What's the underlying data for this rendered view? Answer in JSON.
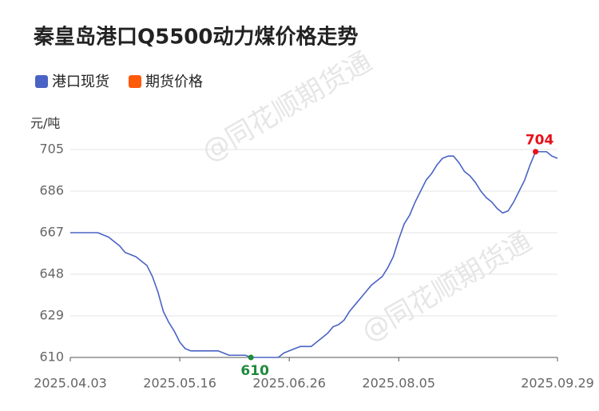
{
  "chart_data": {
    "type": "line",
    "title": "秦皇岛港口Q5500动力煤价格走势",
    "y_label": "元/吨",
    "watermark": "@同花顺期货通",
    "x": [
      "2025.04.03",
      null,
      null,
      null,
      null,
      null,
      null,
      null,
      null,
      null,
      null,
      null,
      null,
      null,
      null,
      null,
      null,
      null,
      null,
      null,
      "2025.05.16",
      null,
      null,
      null,
      null,
      null,
      null,
      null,
      null,
      null,
      null,
      null,
      null,
      null,
      null,
      null,
      null,
      null,
      null,
      null,
      "2025.06.26",
      null,
      null,
      null,
      null,
      null,
      null,
      null,
      null,
      null,
      null,
      null,
      null,
      null,
      null,
      null,
      null,
      null,
      null,
      null,
      "2025.08.05",
      null,
      null,
      null,
      null,
      null,
      null,
      null,
      null,
      null,
      null,
      null,
      null,
      null,
      null,
      null,
      null,
      null,
      null,
      null,
      null,
      null,
      null,
      null,
      null,
      null,
      null,
      null,
      null,
      "2025.09.29"
    ],
    "series": [
      {
        "name": "港口现货",
        "color": "#4a63c4",
        "values": [
          667,
          667,
          667,
          667,
          667,
          667,
          666,
          665,
          663,
          661,
          658,
          657,
          656,
          654,
          652,
          647,
          640,
          631,
          626,
          622,
          617,
          614,
          613,
          613,
          613,
          613,
          613,
          613,
          612,
          611,
          611,
          611,
          611,
          610,
          610,
          610,
          610,
          610,
          610,
          612,
          613,
          614,
          615,
          615,
          615,
          617,
          619,
          621,
          624,
          625,
          627,
          631,
          634,
          637,
          640,
          643,
          645,
          647,
          651,
          656,
          664,
          671,
          675,
          681,
          686,
          691,
          694,
          698,
          701,
          702,
          702,
          699,
          695,
          693,
          690,
          686,
          683,
          681,
          678,
          676,
          677,
          681,
          686,
          691,
          698,
          704,
          704,
          704,
          702,
          701
        ]
      },
      {
        "name": "期货价格",
        "color": "#ff5a0a",
        "values": [
          null,
          null,
          null,
          null,
          null,
          null,
          null,
          null,
          null,
          null,
          null,
          null,
          null,
          null,
          null,
          null,
          null,
          null,
          null,
          null,
          null,
          null,
          null,
          null,
          null,
          null,
          null,
          null,
          null,
          null,
          null,
          null,
          null,
          null,
          null,
          null,
          null,
          null,
          null,
          null,
          null,
          null,
          null,
          null,
          null,
          null,
          null,
          null,
          null,
          null,
          null,
          null,
          null,
          null,
          null,
          null,
          null,
          null,
          null,
          null,
          null,
          null,
          null,
          null,
          null,
          null,
          null,
          null,
          null,
          null,
          null,
          null,
          null,
          null,
          null,
          null,
          null,
          null,
          null,
          null,
          null,
          null,
          null,
          null,
          null,
          null,
          null,
          null,
          null,
          null
        ]
      }
    ],
    "ylim": [
      610,
      705
    ],
    "yticks": [
      610,
      629,
      648,
      667,
      686,
      705
    ],
    "grid": true
  }
}
